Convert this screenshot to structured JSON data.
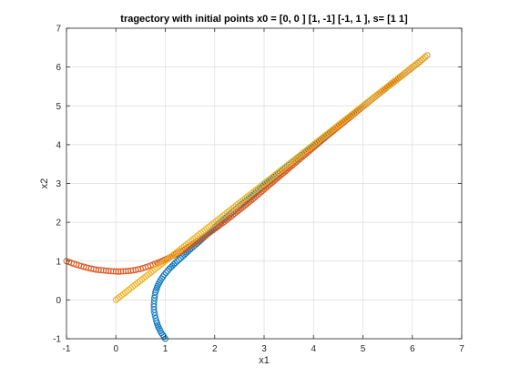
{
  "chart_data": {
    "type": "scatter",
    "title": "tragectory with initial points x0 = [0, 0 ] [1, -1] [-1, 1 ], s= [1 1]",
    "xlabel": "x1",
    "ylabel": "x2",
    "xlim": [
      -1,
      7
    ],
    "ylim": [
      -1,
      7
    ],
    "xticks": [
      -1,
      0,
      1,
      2,
      3,
      4,
      5,
      6,
      7
    ],
    "yticks": [
      -1,
      0,
      1,
      2,
      3,
      4,
      5,
      6,
      7
    ],
    "grid": true,
    "legend": "none",
    "marker": "open-circle",
    "series": [
      {
        "color": "#0072bd",
        "points": [
          [
            1.0,
            -1.0
          ],
          [
            0.92,
            -0.85
          ],
          [
            0.86,
            -0.7
          ],
          [
            0.82,
            -0.55
          ],
          [
            0.79,
            -0.4
          ],
          [
            0.77,
            -0.25
          ],
          [
            0.77,
            -0.1
          ],
          [
            0.78,
            0.05
          ],
          [
            0.8,
            0.2
          ],
          [
            0.84,
            0.35
          ],
          [
            0.9,
            0.5
          ],
          [
            0.98,
            0.65
          ],
          [
            1.08,
            0.8
          ],
          [
            1.2,
            0.95
          ],
          [
            1.35,
            1.12
          ],
          [
            1.5,
            1.3
          ],
          [
            1.7,
            1.52
          ],
          [
            1.9,
            1.75
          ],
          [
            2.1,
            1.98
          ],
          [
            2.3,
            2.2
          ],
          [
            2.5,
            2.42
          ],
          [
            2.75,
            2.68
          ],
          [
            3.0,
            2.95
          ],
          [
            3.25,
            3.21
          ],
          [
            3.5,
            3.47
          ],
          [
            3.75,
            3.73
          ],
          [
            4.0,
            3.98
          ],
          [
            4.25,
            4.23
          ],
          [
            4.5,
            4.49
          ],
          [
            4.75,
            4.74
          ],
          [
            5.0,
            4.99
          ],
          [
            5.25,
            5.24
          ],
          [
            5.5,
            5.49
          ],
          [
            5.75,
            5.74
          ],
          [
            6.0,
            5.99
          ],
          [
            6.15,
            6.14
          ],
          [
            6.3,
            6.3
          ]
        ]
      },
      {
        "color": "#d95319",
        "points": [
          [
            -1.0,
            1.0
          ],
          [
            -0.85,
            0.93
          ],
          [
            -0.7,
            0.87
          ],
          [
            -0.55,
            0.82
          ],
          [
            -0.4,
            0.78
          ],
          [
            -0.25,
            0.76
          ],
          [
            -0.1,
            0.74
          ],
          [
            0.05,
            0.73
          ],
          [
            0.2,
            0.74
          ],
          [
            0.35,
            0.76
          ],
          [
            0.5,
            0.8
          ],
          [
            0.65,
            0.86
          ],
          [
            0.8,
            0.93
          ],
          [
            0.95,
            1.01
          ],
          [
            1.1,
            1.1
          ],
          [
            1.25,
            1.2
          ],
          [
            1.4,
            1.31
          ],
          [
            1.55,
            1.43
          ],
          [
            1.7,
            1.56
          ],
          [
            1.85,
            1.69
          ],
          [
            2.0,
            1.83
          ],
          [
            2.2,
            2.02
          ],
          [
            2.4,
            2.22
          ],
          [
            2.6,
            2.42
          ],
          [
            2.8,
            2.63
          ],
          [
            3.0,
            2.85
          ],
          [
            3.25,
            3.12
          ],
          [
            3.5,
            3.39
          ],
          [
            3.75,
            3.66
          ],
          [
            4.0,
            3.93
          ],
          [
            4.25,
            4.2
          ],
          [
            4.5,
            4.46
          ],
          [
            4.75,
            4.72
          ],
          [
            5.0,
            4.98
          ],
          [
            5.25,
            5.24
          ],
          [
            5.5,
            5.49
          ],
          [
            5.75,
            5.74
          ],
          [
            6.0,
            5.99
          ],
          [
            6.15,
            6.14
          ],
          [
            6.3,
            6.3
          ]
        ]
      },
      {
        "color": "#edb120",
        "points": [
          [
            0.0,
            0.0
          ],
          [
            0.15,
            0.15
          ],
          [
            0.3,
            0.3
          ],
          [
            0.45,
            0.45
          ],
          [
            0.6,
            0.6
          ],
          [
            0.75,
            0.75
          ],
          [
            0.9,
            0.9
          ],
          [
            1.05,
            1.05
          ],
          [
            1.2,
            1.2
          ],
          [
            1.35,
            1.35
          ],
          [
            1.5,
            1.5
          ],
          [
            1.65,
            1.65
          ],
          [
            1.8,
            1.8
          ],
          [
            1.95,
            1.95
          ],
          [
            2.1,
            2.1
          ],
          [
            2.25,
            2.25
          ],
          [
            2.4,
            2.4
          ],
          [
            2.55,
            2.55
          ],
          [
            2.7,
            2.7
          ],
          [
            2.85,
            2.85
          ],
          [
            3.0,
            3.0
          ],
          [
            3.15,
            3.15
          ],
          [
            3.3,
            3.3
          ],
          [
            3.45,
            3.45
          ],
          [
            3.6,
            3.6
          ],
          [
            3.75,
            3.75
          ],
          [
            3.9,
            3.9
          ],
          [
            4.05,
            4.05
          ],
          [
            4.2,
            4.2
          ],
          [
            4.35,
            4.35
          ],
          [
            4.5,
            4.5
          ],
          [
            4.65,
            4.65
          ],
          [
            4.8,
            4.8
          ],
          [
            4.95,
            4.95
          ],
          [
            5.1,
            5.1
          ],
          [
            5.25,
            5.25
          ],
          [
            5.4,
            5.4
          ],
          [
            5.55,
            5.55
          ],
          [
            5.7,
            5.7
          ],
          [
            5.85,
            5.85
          ],
          [
            6.0,
            6.0
          ],
          [
            6.15,
            6.15
          ],
          [
            6.3,
            6.3
          ]
        ]
      }
    ]
  }
}
